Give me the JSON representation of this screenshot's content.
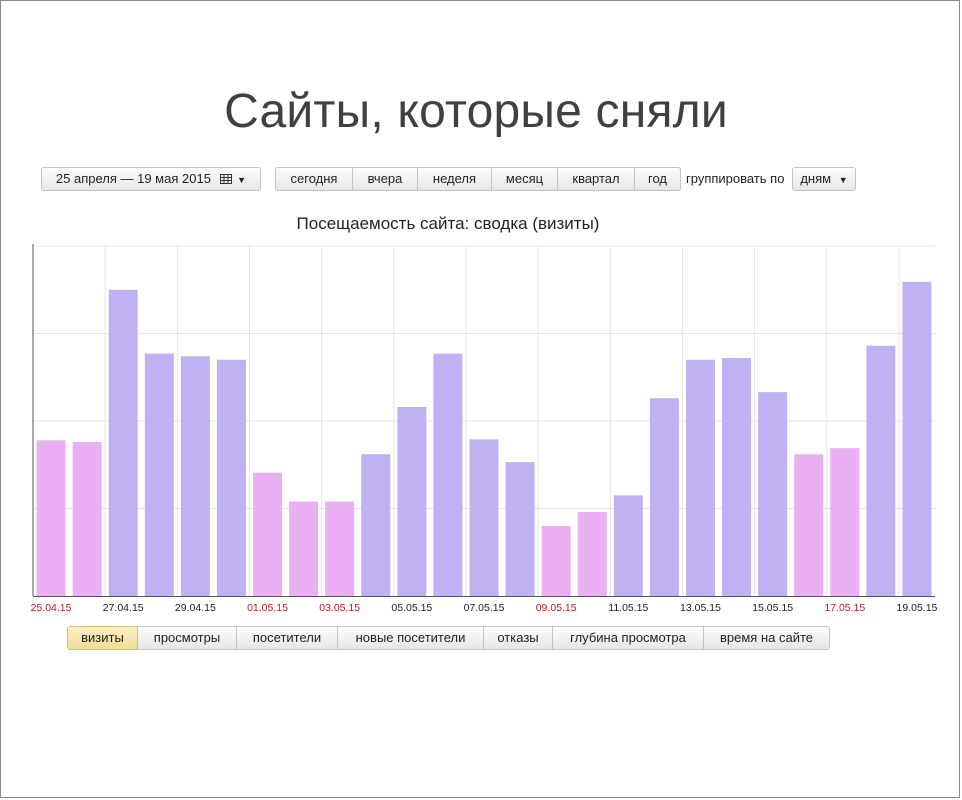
{
  "slide": {
    "title": "Сайты, которые сняли"
  },
  "toolbar": {
    "date_range": "25 апреля — 19 мая 2015",
    "periods": [
      "сегодня",
      "вчера",
      "неделя",
      "месяц",
      "квартал",
      "год"
    ],
    "group_label": "группировать по",
    "group_value": "дням"
  },
  "tabs": [
    "визиты",
    "просмотры",
    "посетители",
    "новые посетители",
    "отказы",
    "глубина просмотра",
    "время на сайте"
  ],
  "active_tab": 0,
  "colors": {
    "weekday_bar": "#c0b1f3",
    "weekend_bar": "#ebb0f4",
    "weekend_label": "#c02020",
    "weekday_label": "#222222",
    "grid": "#e4e4e4",
    "axis": "#555555"
  },
  "chart_data": {
    "type": "bar",
    "title": "Посещаемость сайта: сводка (визиты)",
    "categories": [
      "25.04.15",
      "26.04.15",
      "27.04.15",
      "28.04.15",
      "29.04.15",
      "30.04.15",
      "01.05.15",
      "02.05.15",
      "03.05.15",
      "04.05.15",
      "05.05.15",
      "06.05.15",
      "07.05.15",
      "08.05.15",
      "09.05.15",
      "10.05.15",
      "11.05.15",
      "12.05.15",
      "13.05.15",
      "14.05.15",
      "15.05.15",
      "16.05.15",
      "17.05.15",
      "18.05.15",
      "19.05.15"
    ],
    "weekend": [
      true,
      true,
      false,
      false,
      false,
      false,
      true,
      true,
      true,
      false,
      false,
      false,
      false,
      false,
      true,
      true,
      false,
      false,
      false,
      false,
      false,
      true,
      true,
      false,
      false
    ],
    "values": [
      178,
      176,
      350,
      277,
      274,
      270,
      141,
      108,
      108,
      162,
      216,
      277,
      179,
      153,
      80,
      96,
      115,
      226,
      270,
      272,
      233,
      162,
      169,
      286,
      359
    ],
    "shown_tick_labels": [
      "25.04.15",
      "27.04.15",
      "29.04.15",
      "01.05.15",
      "03.05.15",
      "05.05.15",
      "07.05.15",
      "09.05.15",
      "11.05.15",
      "13.05.15",
      "15.05.15",
      "17.05.15",
      "19.05.15"
    ],
    "ylim": [
      0,
      400
    ],
    "ytick_values": [
      100,
      200,
      300
    ],
    "y_tick_labels_shown": false,
    "grid": true,
    "legend": "none"
  }
}
